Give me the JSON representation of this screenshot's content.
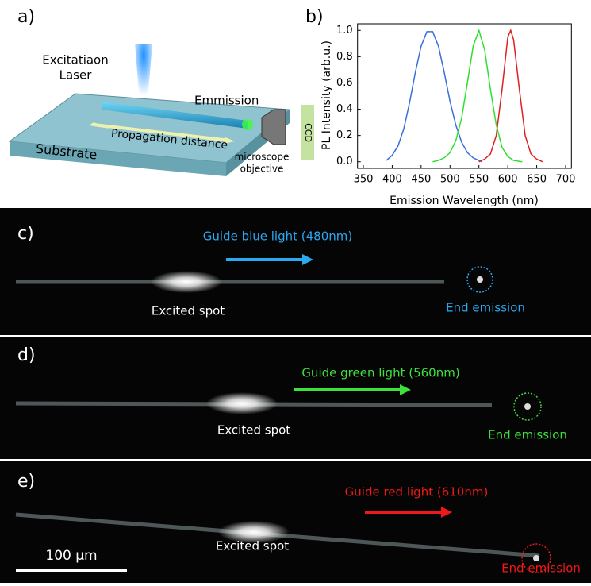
{
  "panel_a": {
    "label": "a)",
    "laser_label": [
      "Excitatiaon",
      "Laser"
    ],
    "emission": "Emmission",
    "propagation": "Propagation distance",
    "substrate": "Substrate",
    "objective": [
      "microscope",
      "objective"
    ],
    "ccd": "CCD"
  },
  "chart_data": {
    "type": "line",
    "label": "b)",
    "xlabel": "Emission Wavelength (nm)",
    "ylabel": "PL Intensity (arb.u.)",
    "xlim": [
      340,
      710
    ],
    "xticks": [
      350,
      400,
      450,
      500,
      550,
      600,
      650,
      700
    ],
    "ylim": [
      -0.05,
      1.05
    ],
    "yticks": [
      {
        "value": 0,
        "label": "0.0"
      },
      0.2,
      0.4,
      0.6,
      0.8,
      {
        "value": 1,
        "label": "1.0"
      }
    ],
    "series": [
      {
        "color": "#3a6fd8",
        "x": [
          390,
          400,
          410,
          420,
          430,
          440,
          450,
          460,
          470,
          480,
          490,
          500,
          510,
          520,
          530,
          540,
          550,
          555
        ],
        "values": [
          0.01,
          0.05,
          0.12,
          0.25,
          0.45,
          0.68,
          0.88,
          0.99,
          0.99,
          0.88,
          0.68,
          0.46,
          0.28,
          0.15,
          0.07,
          0.03,
          0.01,
          0.0
        ]
      },
      {
        "color": "#2ee02e",
        "x": [
          470,
          480,
          490,
          500,
          510,
          520,
          530,
          540,
          550,
          560,
          570,
          580,
          590,
          600,
          610,
          625
        ],
        "values": [
          0.0,
          0.01,
          0.03,
          0.07,
          0.16,
          0.33,
          0.6,
          0.88,
          1.0,
          0.85,
          0.55,
          0.28,
          0.11,
          0.04,
          0.01,
          0.0
        ]
      },
      {
        "color": "#e02020",
        "x": [
          550,
          560,
          570,
          580,
          590,
          600,
          605,
          610,
          620,
          630,
          640,
          650,
          660
        ],
        "values": [
          0.0,
          0.02,
          0.06,
          0.2,
          0.55,
          0.95,
          1.0,
          0.93,
          0.55,
          0.2,
          0.06,
          0.02,
          0.0
        ]
      }
    ]
  },
  "images": [
    {
      "label": "c)",
      "guide": "Guide blue light (480nm)",
      "spot": "Excited spot",
      "end": "End emission",
      "color": "#2aa8f0"
    },
    {
      "label": "d)",
      "guide": "Guide green light (560nm)",
      "spot": "Excited spot",
      "end": "End emission",
      "color": "#3ee03e"
    },
    {
      "label": "e)",
      "guide": "Guide red light (610nm)",
      "spot": "Excited spot",
      "end": "End emission",
      "color": "#f01818"
    }
  ],
  "scale_bar": "100 µm"
}
